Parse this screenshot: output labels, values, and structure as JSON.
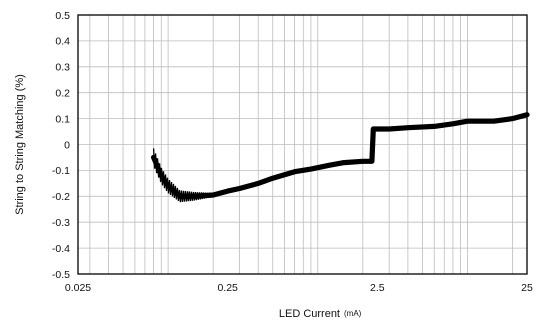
{
  "chart_data": {
    "type": "line",
    "xlabel": "LED Current",
    "xunit": "(mA)",
    "ylabel": "String to String Matching (%)",
    "xscale": "log",
    "xlim": [
      0.025,
      25
    ],
    "ylim": [
      -0.5,
      0.5
    ],
    "x_ticks": [
      "0.025",
      "0.25",
      "2.5",
      "25"
    ],
    "y_ticks": [
      "0.5",
      "0.4",
      "0.3",
      "0.2",
      "0.1",
      "0",
      "-0.1",
      "-0.2",
      "-0.3",
      "-0.4",
      "-0.5"
    ],
    "grid": true,
    "series": [
      {
        "x": [
          0.08,
          0.09,
          0.1,
          0.12,
          0.15,
          0.2,
          0.25,
          0.3,
          0.4,
          0.5,
          0.7,
          0.9,
          1.2,
          1.5,
          2.0,
          2.3,
          2.35,
          2.4,
          3.0,
          4.0,
          6.0,
          8.0,
          10.0,
          15.0,
          20.0,
          25.0
        ],
        "y": [
          -0.05,
          -0.12,
          -0.16,
          -0.2,
          -0.2,
          -0.195,
          -0.18,
          -0.17,
          -0.15,
          -0.13,
          -0.105,
          -0.095,
          -0.08,
          -0.07,
          -0.065,
          -0.065,
          0.06,
          0.06,
          0.06,
          0.065,
          0.07,
          0.08,
          0.09,
          0.09,
          0.1,
          0.115
        ]
      }
    ]
  }
}
